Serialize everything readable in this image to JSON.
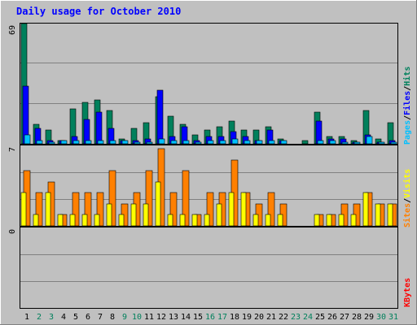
{
  "title": "Daily usage for October 2010",
  "colors": {
    "background": "#c0c0c0",
    "hits": "#00805c",
    "files": "#0000ff",
    "pages": "#00c0ff",
    "visits": "#ff8000",
    "sites": "#ffff00",
    "kbytes": "#ff0000",
    "weekday_label": "#000000",
    "weekend_label": "#00805c",
    "title_color": "#0000ff"
  },
  "chart_data": [
    {
      "type": "bar",
      "panel": "top",
      "ymax_label": "69",
      "ylim": [
        0,
        69
      ],
      "legend": [
        "Pages",
        "/",
        "Files",
        "/",
        "Hits"
      ],
      "categories": [
        "1",
        "2",
        "3",
        "4",
        "5",
        "6",
        "7",
        "8",
        "9",
        "10",
        "11",
        "12",
        "13",
        "14",
        "15",
        "16",
        "17",
        "18",
        "19",
        "20",
        "21",
        "22",
        "23",
        "24",
        "25",
        "26",
        "27",
        "28",
        "29",
        "30",
        "31"
      ],
      "series": [
        {
          "name": "Hits",
          "values": [
            69,
            11,
            8,
            2,
            20,
            24,
            25,
            19,
            3,
            9,
            12,
            27,
            16,
            11,
            5,
            8,
            10,
            13,
            8,
            8,
            10,
            3,
            0,
            2,
            18,
            4,
            4,
            2,
            19,
            3,
            12
          ]
        },
        {
          "name": "Files",
          "values": [
            33,
            9,
            2,
            2,
            4,
            14,
            18,
            9,
            2,
            2,
            3,
            31,
            4,
            10,
            2,
            4,
            4,
            7,
            4,
            2,
            8,
            2,
            0,
            0,
            13,
            3,
            3,
            1,
            5,
            1,
            2
          ]
        },
        {
          "name": "Pages",
          "values": [
            5,
            2,
            1,
            2,
            2,
            2,
            2,
            2,
            2,
            1,
            1,
            3,
            2,
            2,
            1,
            2,
            2,
            3,
            2,
            2,
            2,
            2,
            0,
            0,
            2,
            2,
            1,
            1,
            4,
            1,
            1
          ]
        }
      ]
    },
    {
      "type": "bar",
      "panel": "middle",
      "ymax_label": "7",
      "ylim": [
        0,
        7
      ],
      "legend": [
        "Sites",
        "/",
        "Visits"
      ],
      "categories": [
        "1",
        "2",
        "3",
        "4",
        "5",
        "6",
        "7",
        "8",
        "9",
        "10",
        "11",
        "12",
        "13",
        "14",
        "15",
        "16",
        "17",
        "18",
        "19",
        "20",
        "21",
        "22",
        "23",
        "24",
        "25",
        "26",
        "27",
        "28",
        "29",
        "30",
        "31"
      ],
      "series": [
        {
          "name": "Visits",
          "values": [
            5,
            3,
            4,
            1,
            3,
            3,
            3,
            5,
            2,
            3,
            5,
            7,
            3,
            5,
            1,
            3,
            3,
            6,
            3,
            2,
            3,
            2,
            0,
            0,
            1,
            1,
            2,
            2,
            3,
            2,
            2
          ]
        },
        {
          "name": "Sites",
          "values": [
            3,
            1,
            3,
            1,
            1,
            1,
            1,
            2,
            1,
            2,
            2,
            4,
            1,
            1,
            1,
            1,
            2,
            3,
            3,
            1,
            1,
            1,
            0,
            0,
            1,
            1,
            1,
            1,
            3,
            2,
            2
          ]
        }
      ]
    },
    {
      "type": "bar",
      "panel": "bottom",
      "ymax_label": "0",
      "ylim": [
        0,
        1
      ],
      "legend": [
        "KBytes"
      ],
      "categories": [
        "1",
        "2",
        "3",
        "4",
        "5",
        "6",
        "7",
        "8",
        "9",
        "10",
        "11",
        "12",
        "13",
        "14",
        "15",
        "16",
        "17",
        "18",
        "19",
        "20",
        "21",
        "22",
        "23",
        "24",
        "25",
        "26",
        "27",
        "28",
        "29",
        "30",
        "31"
      ],
      "series": [
        {
          "name": "KBytes",
          "values": [
            0,
            0,
            0,
            0,
            0,
            0,
            0,
            0,
            0,
            0,
            0,
            0,
            0,
            0,
            0,
            0,
            0,
            0,
            0,
            0,
            0,
            0,
            0,
            0,
            0,
            0,
            0,
            0,
            0,
            0,
            0
          ]
        }
      ]
    }
  ],
  "weekend_days": [
    "2",
    "3",
    "9",
    "10",
    "16",
    "17",
    "23",
    "24",
    "30",
    "31"
  ]
}
